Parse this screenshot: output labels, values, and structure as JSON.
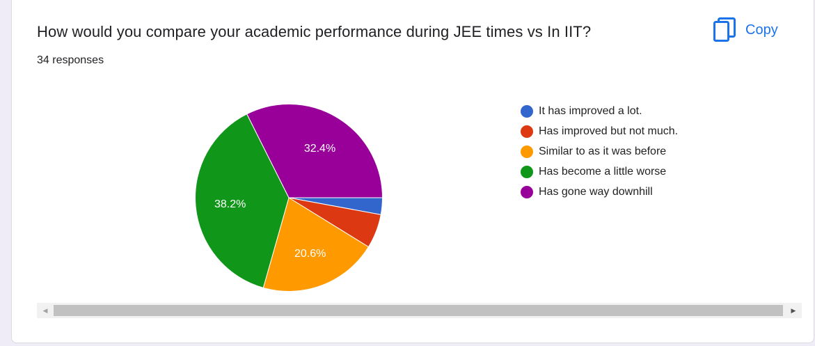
{
  "card": {
    "question": "How would you compare your academic performance during JEE times vs In IIT?",
    "responses": "34 responses",
    "copy_label": "Copy",
    "copy_icon": "copy-icon"
  },
  "scrollbar": {
    "left_arrow": "◀",
    "right_arrow": "▶"
  },
  "chart_data": {
    "type": "pie",
    "title": "",
    "start_angle_deg": 0,
    "direction": "clockwise",
    "legend_position": "right",
    "slices": [
      {
        "label": "It has improved a lot.",
        "value": 2.9,
        "display": "",
        "color": "#3366cc"
      },
      {
        "label": "Has improved but not much.",
        "value": 5.9,
        "display": "",
        "color": "#dc3912"
      },
      {
        "label": "Similar to as it was before",
        "value": 20.6,
        "display": "20.6%",
        "color": "#ff9900"
      },
      {
        "label": "Has become a little worse",
        "value": 38.2,
        "display": "38.2%",
        "color": "#109618"
      },
      {
        "label": "Has gone way downhill",
        "value": 32.4,
        "display": "32.4%",
        "color": "#990099"
      }
    ]
  }
}
